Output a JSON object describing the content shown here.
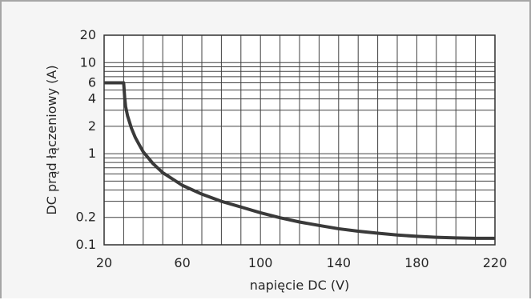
{
  "chart_data": {
    "type": "line",
    "title": "",
    "xlabel": "napięcie DC (V)",
    "ylabel": "DC prąd łączeniowy (A)",
    "xlim": [
      20,
      220
    ],
    "ylim": [
      0.1,
      20
    ],
    "yscale": "log",
    "grid": true,
    "x_ticks": [
      20,
      60,
      100,
      140,
      180,
      220
    ],
    "x_tick_labels": [
      "20",
      "60",
      "100",
      "140",
      "180",
      "220"
    ],
    "y_ticks": [
      0.1,
      0.2,
      1,
      2,
      4,
      6,
      10,
      20
    ],
    "y_tick_labels": [
      "0.1",
      "0.2",
      "1",
      "2",
      "4",
      "6",
      "10",
      "20"
    ],
    "series": [
      {
        "x": [
          20,
          30,
          30.5,
          31,
          32,
          34,
          36,
          38,
          40,
          45,
          50,
          60,
          70,
          80,
          90,
          100,
          110,
          120,
          130,
          140,
          150,
          160,
          170,
          180,
          190,
          200,
          210,
          220
        ],
        "y": [
          6,
          6,
          4.2,
          3.3,
          2.6,
          1.9,
          1.5,
          1.25,
          1.05,
          0.78,
          0.62,
          0.45,
          0.36,
          0.3,
          0.26,
          0.225,
          0.198,
          0.178,
          0.163,
          0.15,
          0.141,
          0.134,
          0.128,
          0.124,
          0.121,
          0.119,
          0.118,
          0.118
        ]
      }
    ],
    "colors": {
      "curve": "#3a3a3a",
      "grid": "#404040",
      "background": "#f5f5f5",
      "frame": "#a6a6a6"
    }
  }
}
